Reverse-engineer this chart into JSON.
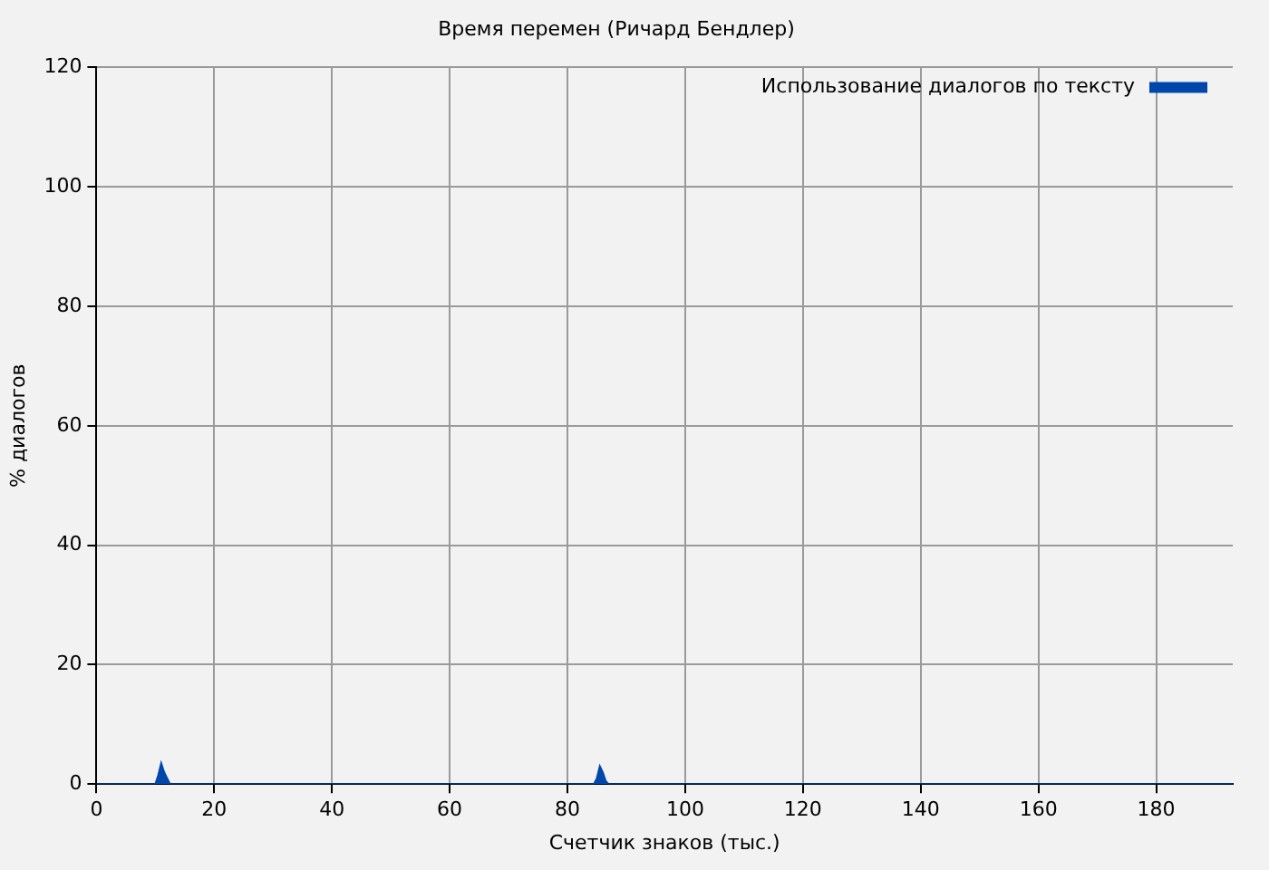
{
  "chart_data": {
    "type": "area",
    "title": "Время перемен (Ричард Бендлер)",
    "xlabel": "Счетчик знаков (тыс.)",
    "ylabel": "% диалогов",
    "x": [
      0,
      10,
      10.5,
      11,
      11.5,
      12,
      12.5,
      84.5,
      85,
      85.5,
      86,
      86.5,
      87,
      193
    ],
    "series": [
      {
        "name": "Использование диалогов по тексту",
        "color": "#0047ab",
        "values": [
          0,
          0,
          1.5,
          3.5,
          2,
          1,
          0,
          0,
          1,
          3,
          2,
          0.5,
          0,
          0
        ]
      }
    ],
    "xlim": [
      0,
      193
    ],
    "xticks": [
      0,
      20,
      40,
      60,
      80,
      100,
      120,
      140,
      160,
      180
    ],
    "ylim": [
      0,
      120
    ],
    "yticks": [
      0,
      20,
      40,
      60,
      80,
      100,
      120
    ],
    "grid": true,
    "legend": "top right"
  }
}
